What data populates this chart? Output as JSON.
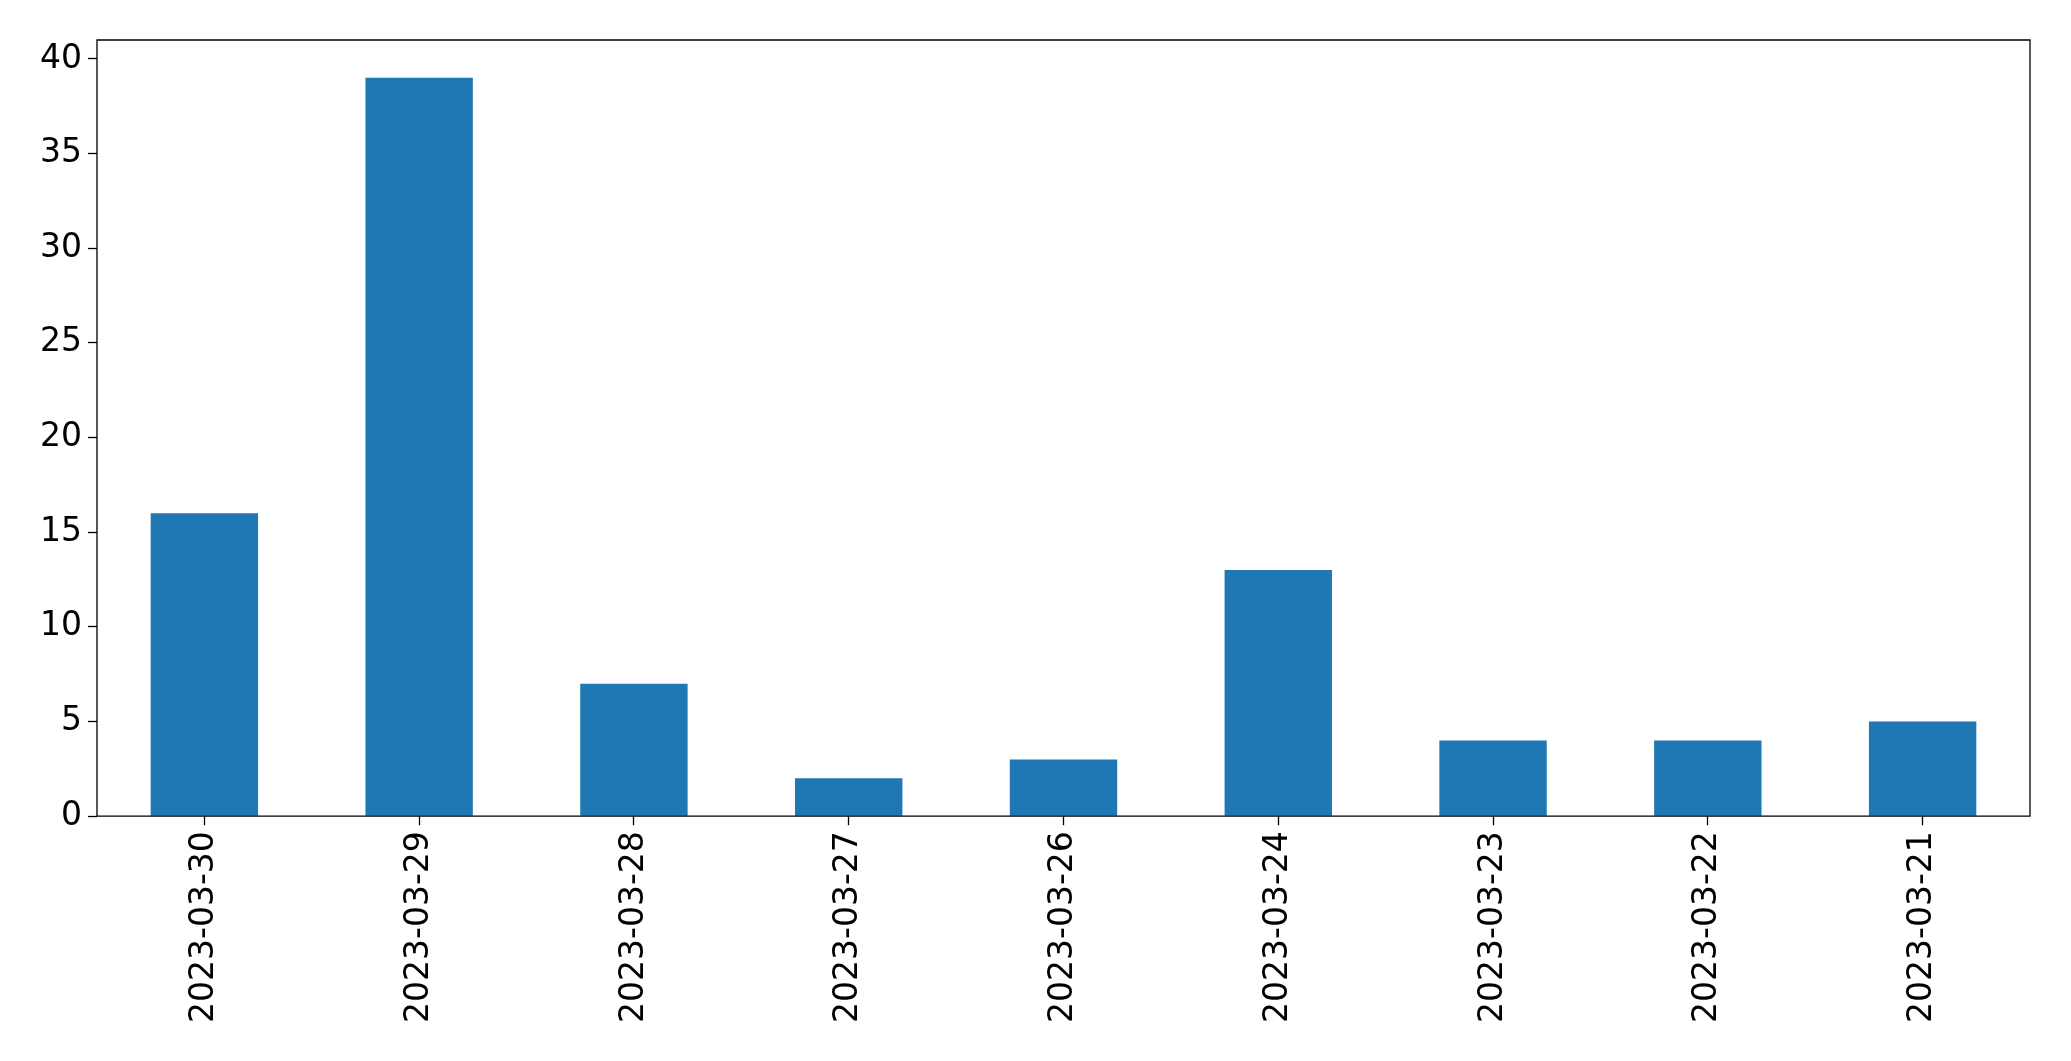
{
  "chart_data": {
    "type": "bar",
    "categories": [
      "2023-03-30",
      "2023-03-29",
      "2023-03-28",
      "2023-03-27",
      "2023-03-26",
      "2023-03-24",
      "2023-03-23",
      "2023-03-22",
      "2023-03-21"
    ],
    "values": [
      16,
      39,
      7,
      2,
      3,
      13,
      4,
      4,
      5
    ],
    "color": "#1f77b4",
    "ylim": [
      0,
      41
    ],
    "yticks": [
      0,
      5,
      10,
      15,
      20,
      25,
      30,
      35,
      40
    ],
    "grid": false
  }
}
